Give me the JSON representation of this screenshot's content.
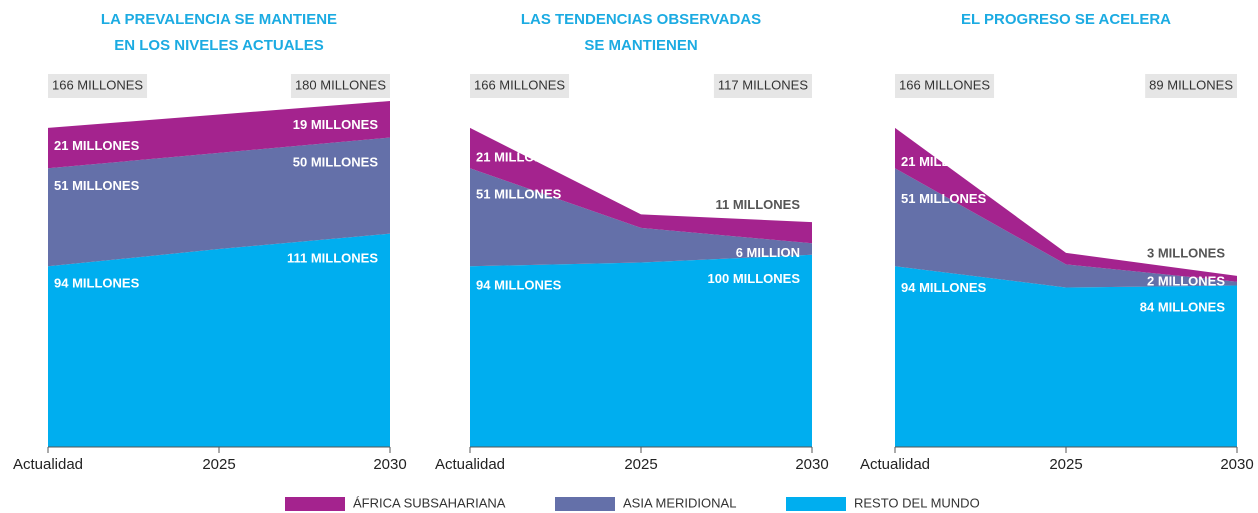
{
  "legend": [
    {
      "name": "ÁFRICA SUBSAHARIANA",
      "color": "#a4238e"
    },
    {
      "name": "ASIA MERIDIONAL",
      "color": "#6470a9"
    },
    {
      "name": "RESTO DEL MUNDO",
      "color": "#00aeef"
    }
  ],
  "chart_data": [
    {
      "type": "stacked-area",
      "title": [
        "LA PREVALENCIA SE MANTIENE",
        "EN LOS NIVELES ACTUALES"
      ],
      "categories": [
        "Actualidad",
        "2025",
        "2030"
      ],
      "ylim": [
        0,
        180
      ],
      "totals": [
        "166 MILLONES",
        "180 MILLONES"
      ],
      "series": [
        {
          "values": [
            21,
            20,
            19
          ],
          "value_labels": [
            "21 MILLONES",
            null,
            "19 MILLONES"
          ]
        },
        {
          "values": [
            51,
            50,
            50
          ],
          "value_labels": [
            "51 MILLONES",
            null,
            "50 MILLONES"
          ]
        },
        {
          "values": [
            94,
            103,
            111
          ],
          "value_labels": [
            "94 MILLONES",
            null,
            "111 MILLONES"
          ]
        }
      ]
    },
    {
      "type": "stacked-area",
      "title": [
        "LAS TENDENCIAS OBSERVADAS",
        "SE MANTIENEN"
      ],
      "categories": [
        "Actualidad",
        "2025",
        "2030"
      ],
      "ylim": [
        0,
        180
      ],
      "totals": [
        "166 MILLONES",
        "117 MILLONES"
      ],
      "series": [
        {
          "values": [
            21,
            7,
            11
          ],
          "value_labels": [
            "21 MILLONES",
            null,
            "11 MILLONES"
          ]
        },
        {
          "values": [
            51,
            18,
            6
          ],
          "value_labels": [
            "51 MILLONES",
            null,
            "6 MILLION"
          ]
        },
        {
          "values": [
            94,
            96,
            100
          ],
          "value_labels": [
            "94 MILLONES",
            null,
            "100 MILLONES"
          ]
        }
      ]
    },
    {
      "type": "stacked-area",
      "title": [
        "EL PROGRESO SE ACELERA"
      ],
      "categories": [
        "Actualidad",
        "2025",
        "2030"
      ],
      "ylim": [
        0,
        180
      ],
      "totals": [
        "166 MILLONES",
        "89 MILLONES"
      ],
      "series": [
        {
          "values": [
            21,
            6,
            3
          ],
          "value_labels": [
            "21 MILLONES",
            null,
            "3 MILLONES"
          ]
        },
        {
          "values": [
            51,
            12,
            2
          ],
          "value_labels": [
            "51 MILLONES",
            null,
            "2 MILLONES"
          ]
        },
        {
          "values": [
            94,
            83,
            84
          ],
          "value_labels": [
            "94 MILLONES",
            null,
            "84 MILLONES"
          ]
        }
      ]
    }
  ]
}
